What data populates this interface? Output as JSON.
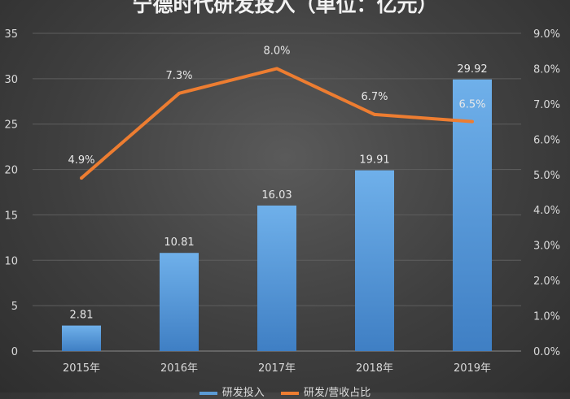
{
  "chart_data": {
    "type": "bar",
    "title": "宁德时代研发投入（单位：亿元）",
    "categories": [
      "2015年",
      "2016年",
      "2017年",
      "2018年",
      "2019年"
    ],
    "series": [
      {
        "name": "研发投入",
        "type": "bar",
        "axis": "left",
        "values": [
          2.81,
          10.81,
          16.03,
          19.91,
          29.92
        ],
        "labels": [
          "2.81",
          "10.81",
          "16.03",
          "19.91",
          "29.92"
        ],
        "color": "#5b9bd5"
      },
      {
        "name": "研发/营收占比",
        "type": "line",
        "axis": "right",
        "values": [
          4.9,
          7.3,
          8.0,
          6.7,
          6.5
        ],
        "labels": [
          "4.9%",
          "7.3%",
          "8.0%",
          "6.7%",
          "6.5%"
        ],
        "color": "#ed7d31"
      }
    ],
    "ylim": [
      0,
      35
    ],
    "yticks": [
      "0",
      "5",
      "10",
      "15",
      "20",
      "25",
      "30",
      "35"
    ],
    "y2lim": [
      0,
      9
    ],
    "y2ticks": [
      "0.0%",
      "1.0%",
      "2.0%",
      "3.0%",
      "4.0%",
      "5.0%",
      "6.0%",
      "7.0%",
      "8.0%",
      "9.0%"
    ],
    "grid": true,
    "legend": "bottom"
  }
}
